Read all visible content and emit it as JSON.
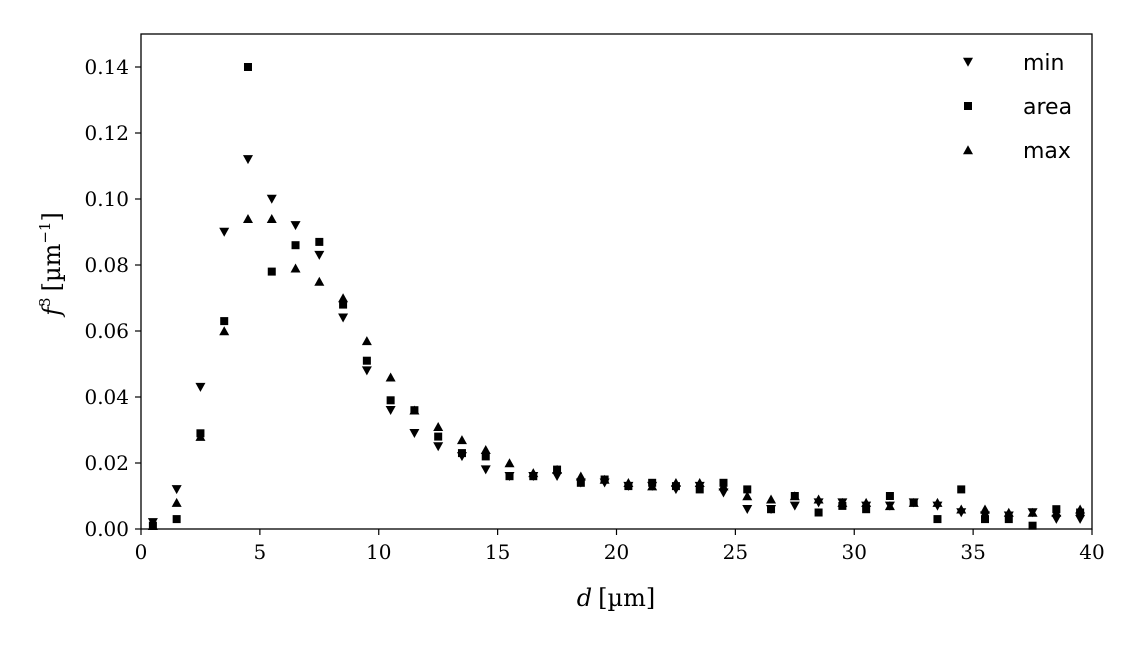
{
  "chart_data": {
    "type": "scatter",
    "xlabel_var": "d",
    "xlabel_unit": "[µm]",
    "ylabel_var": "f",
    "ylabel_sup": "3",
    "ylabel_unit_open": "[µm",
    "ylabel_unit_sup": "−1",
    "ylabel_unit_close": "]",
    "xlim": [
      0,
      40
    ],
    "ylim": [
      0,
      0.15
    ],
    "xticks": [
      0,
      5,
      10,
      15,
      20,
      25,
      30,
      35,
      40
    ],
    "yticks": [
      0.0,
      0.02,
      0.04,
      0.06,
      0.08,
      0.1,
      0.12,
      0.14
    ],
    "xtick_labels": [
      "0",
      "5",
      "10",
      "15",
      "20",
      "25",
      "30",
      "35",
      "40"
    ],
    "ytick_labels": [
      "0.00",
      "0.02",
      "0.04",
      "0.06",
      "0.08",
      "0.10",
      "0.12",
      "0.14"
    ],
    "grid": false,
    "legend_position": "top-right",
    "x": [
      0.5,
      1.5,
      2.5,
      3.5,
      4.5,
      5.5,
      6.5,
      7.5,
      8.5,
      9.5,
      10.5,
      11.5,
      12.5,
      13.5,
      14.5,
      15.5,
      16.5,
      17.5,
      18.5,
      19.5,
      20.5,
      21.5,
      22.5,
      23.5,
      24.5,
      25.5,
      26.5,
      27.5,
      28.5,
      29.5,
      30.5,
      31.5,
      32.5,
      33.5,
      34.5,
      35.5,
      36.5,
      37.5,
      38.5,
      39.5
    ],
    "series": [
      {
        "name": "min",
        "marker": "triangle-down",
        "values": [
          0.002,
          0.012,
          0.043,
          0.09,
          0.112,
          0.1,
          0.092,
          0.083,
          0.064,
          0.048,
          0.036,
          0.029,
          0.025,
          0.022,
          0.018,
          0.016,
          0.016,
          0.016,
          0.014,
          0.014,
          0.013,
          0.013,
          0.012,
          0.013,
          0.011,
          0.006,
          0.006,
          0.007,
          0.008,
          0.008,
          0.007,
          0.007,
          0.008,
          0.007,
          0.005,
          0.004,
          0.004,
          0.005,
          0.003,
          0.003
        ]
      },
      {
        "name": "area",
        "marker": "square",
        "values": [
          0.001,
          0.003,
          0.029,
          0.063,
          0.14,
          0.078,
          0.086,
          0.087,
          0.068,
          0.051,
          0.039,
          0.036,
          0.028,
          0.023,
          0.022,
          0.016,
          0.016,
          0.018,
          0.014,
          0.015,
          0.013,
          0.014,
          0.013,
          0.012,
          0.014,
          0.012,
          0.006,
          0.01,
          0.005,
          0.007,
          0.006,
          0.01,
          0.008,
          0.003,
          0.012,
          0.003,
          0.003,
          0.001,
          0.006,
          0.005
        ]
      },
      {
        "name": "max",
        "marker": "triangle-up",
        "values": [
          0.001,
          0.008,
          0.028,
          0.06,
          0.094,
          0.094,
          0.079,
          0.075,
          0.07,
          0.057,
          0.046,
          0.036,
          0.031,
          0.027,
          0.024,
          0.02,
          0.017,
          0.018,
          0.016,
          0.015,
          0.014,
          0.013,
          0.014,
          0.014,
          0.013,
          0.01,
          0.009,
          0.01,
          0.009,
          0.008,
          0.008,
          0.007,
          0.008,
          0.008,
          0.006,
          0.006,
          0.005,
          0.005,
          0.005,
          0.006
        ]
      }
    ]
  }
}
